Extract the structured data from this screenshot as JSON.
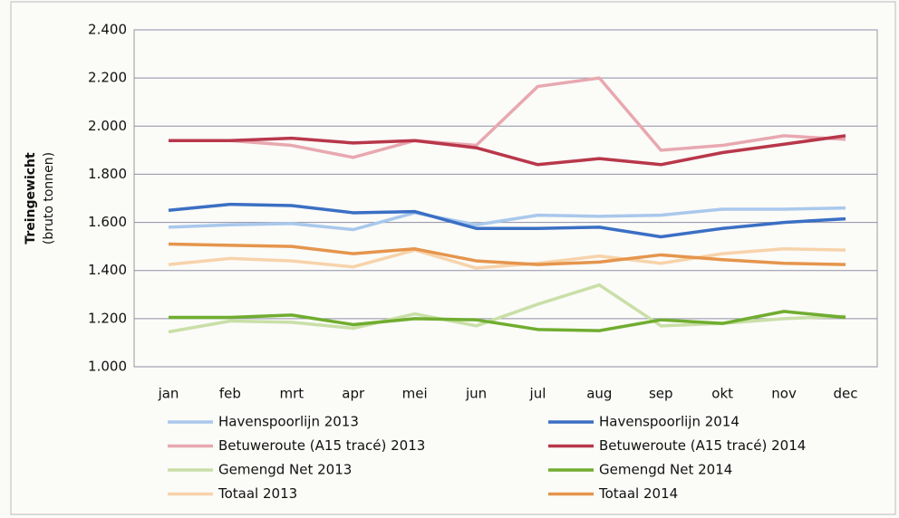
{
  "chart_data": {
    "type": "line",
    "ylabel": "Treingewicht",
    "ylabel_sub": "(bruto tonnen)",
    "categories": [
      "jan",
      "feb",
      "mrt",
      "apr",
      "mei",
      "jun",
      "jul",
      "aug",
      "sep",
      "okt",
      "nov",
      "dec"
    ],
    "ylim": [
      1000,
      2400
    ],
    "yticks": [
      {
        "value": 1000,
        "label": "1.000"
      },
      {
        "value": 1200,
        "label": "1.200"
      },
      {
        "value": 1400,
        "label": "1.400"
      },
      {
        "value": 1600,
        "label": "1.600"
      },
      {
        "value": 1800,
        "label": "1.800"
      },
      {
        "value": 2000,
        "label": "2.000"
      },
      {
        "value": 2200,
        "label": "2.200"
      },
      {
        "value": 2400,
        "label": "2.400"
      }
    ],
    "grid": true,
    "series": [
      {
        "name": "Havenspoorlijn 2013",
        "color": "#a9c8ec",
        "values": [
          1580,
          1590,
          1595,
          1570,
          1640,
          1590,
          1630,
          1625,
          1630,
          1655,
          1655,
          1660
        ]
      },
      {
        "name": "Havenspoorlijn 2014",
        "color": "#3a6fc4",
        "values": [
          1650,
          1675,
          1670,
          1640,
          1645,
          1575,
          1575,
          1580,
          1540,
          1575,
          1600,
          1615
        ]
      },
      {
        "name": "Betuweroute (A15 tracé) 2013",
        "color": "#e8a8b0",
        "values": [
          1940,
          1940,
          1920,
          1870,
          1940,
          1920,
          2165,
          2200,
          1900,
          1920,
          1960,
          1945
        ]
      },
      {
        "name": "Betuweroute (A15 tracé) 2014",
        "color": "#b8374a",
        "values": [
          1940,
          1940,
          1950,
          1930,
          1940,
          1910,
          1840,
          1865,
          1840,
          1890,
          1925,
          1960
        ]
      },
      {
        "name": "Gemengd Net 2013",
        "color": "#c9dfa7",
        "values": [
          1145,
          1190,
          1185,
          1160,
          1220,
          1170,
          1260,
          1340,
          1170,
          1180,
          1200,
          1210
        ]
      },
      {
        "name": "Gemengd Net 2014",
        "color": "#70ad2f",
        "values": [
          1205,
          1205,
          1215,
          1175,
          1200,
          1195,
          1155,
          1150,
          1195,
          1180,
          1230,
          1205
        ]
      },
      {
        "name": "Totaal 2013",
        "color": "#f7d3aa",
        "values": [
          1425,
          1450,
          1440,
          1415,
          1485,
          1410,
          1430,
          1460,
          1430,
          1470,
          1490,
          1485
        ]
      },
      {
        "name": "Totaal 2014",
        "color": "#e5954c",
        "values": [
          1510,
          1505,
          1500,
          1470,
          1490,
          1440,
          1425,
          1435,
          1465,
          1445,
          1430,
          1425
        ]
      }
    ]
  }
}
